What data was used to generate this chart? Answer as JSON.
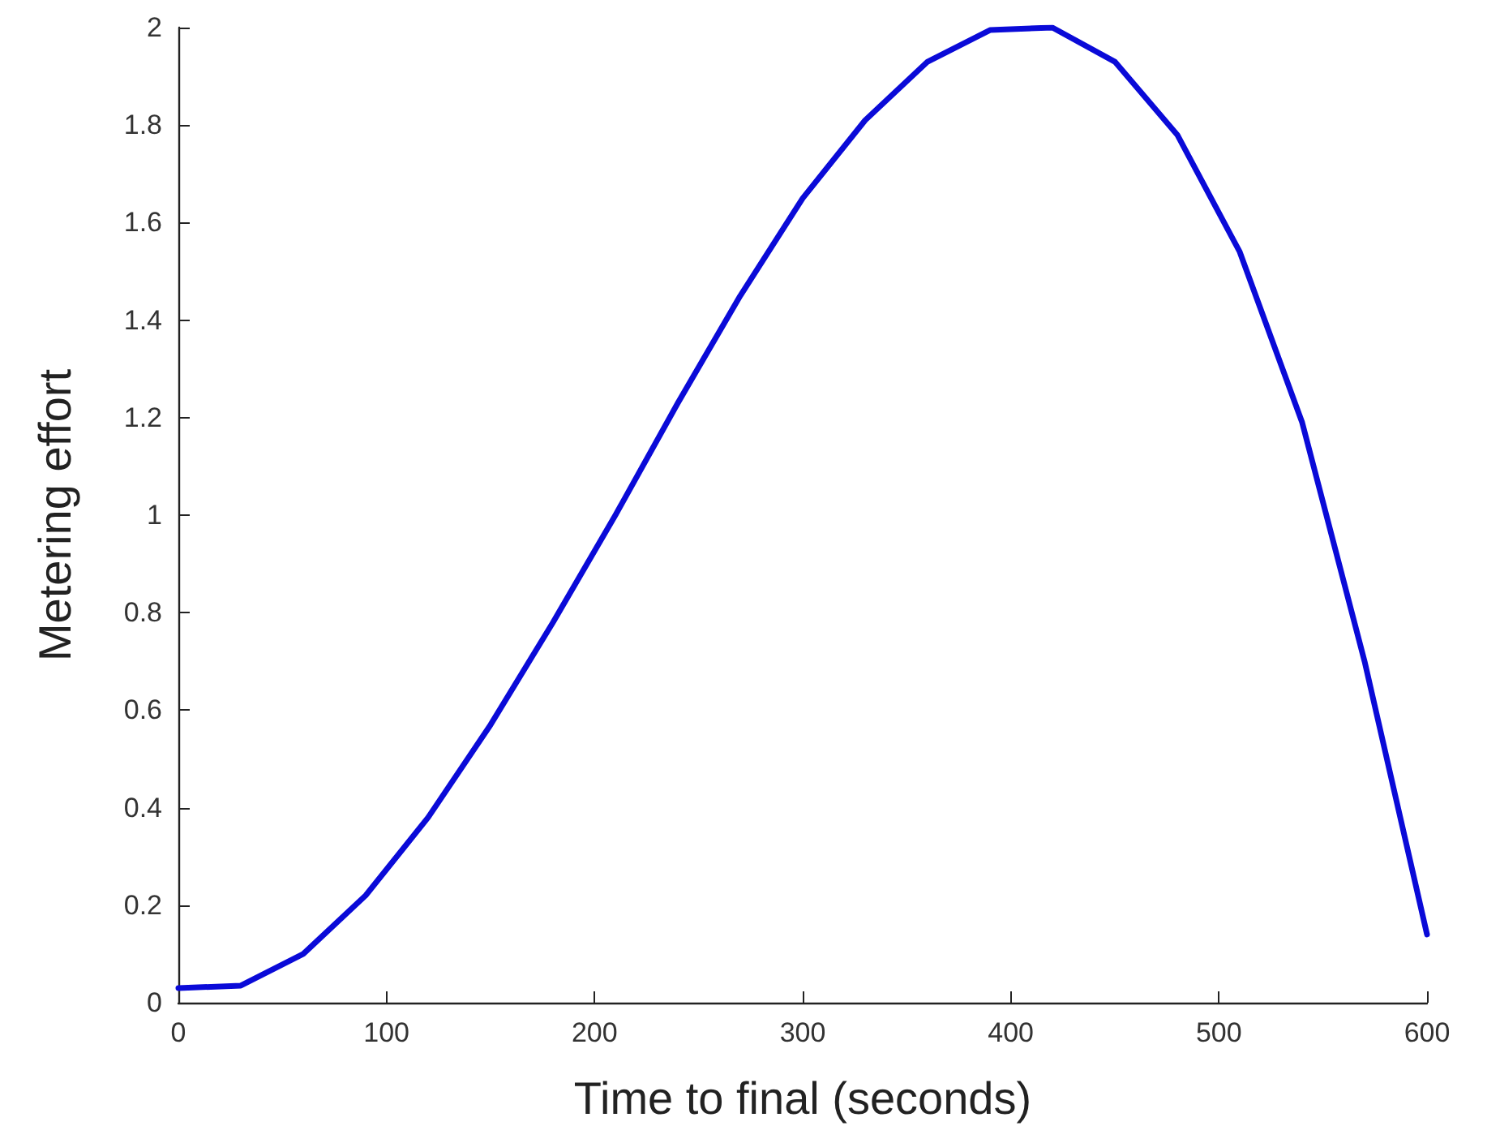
{
  "chart_data": {
    "type": "line",
    "xlabel": "Time to final (seconds)",
    "ylabel": "Metering effort",
    "x": [
      0,
      30,
      60,
      90,
      120,
      150,
      180,
      210,
      240,
      270,
      300,
      330,
      360,
      390,
      420,
      450,
      480,
      510,
      540,
      570,
      600
    ],
    "series": [
      {
        "color": "#0a0ad8",
        "values": [
          0.03,
          0.035,
          0.1,
          0.22,
          0.38,
          0.57,
          0.78,
          1.0,
          1.23,
          1.45,
          1.65,
          1.81,
          1.93,
          1.995,
          2.0,
          1.93,
          1.78,
          1.54,
          1.19,
          0.7,
          0.14
        ]
      }
    ],
    "xlim": [
      0,
      600
    ],
    "xticks": [
      0,
      100,
      200,
      300,
      400,
      500,
      600
    ],
    "ylim": [
      0,
      2
    ],
    "yticks": [
      0,
      0.2,
      0.4,
      0.6,
      0.8,
      1,
      1.2,
      1.4,
      1.6,
      1.8,
      2
    ],
    "grid": false,
    "marker": "none",
    "line_style": "solid"
  }
}
